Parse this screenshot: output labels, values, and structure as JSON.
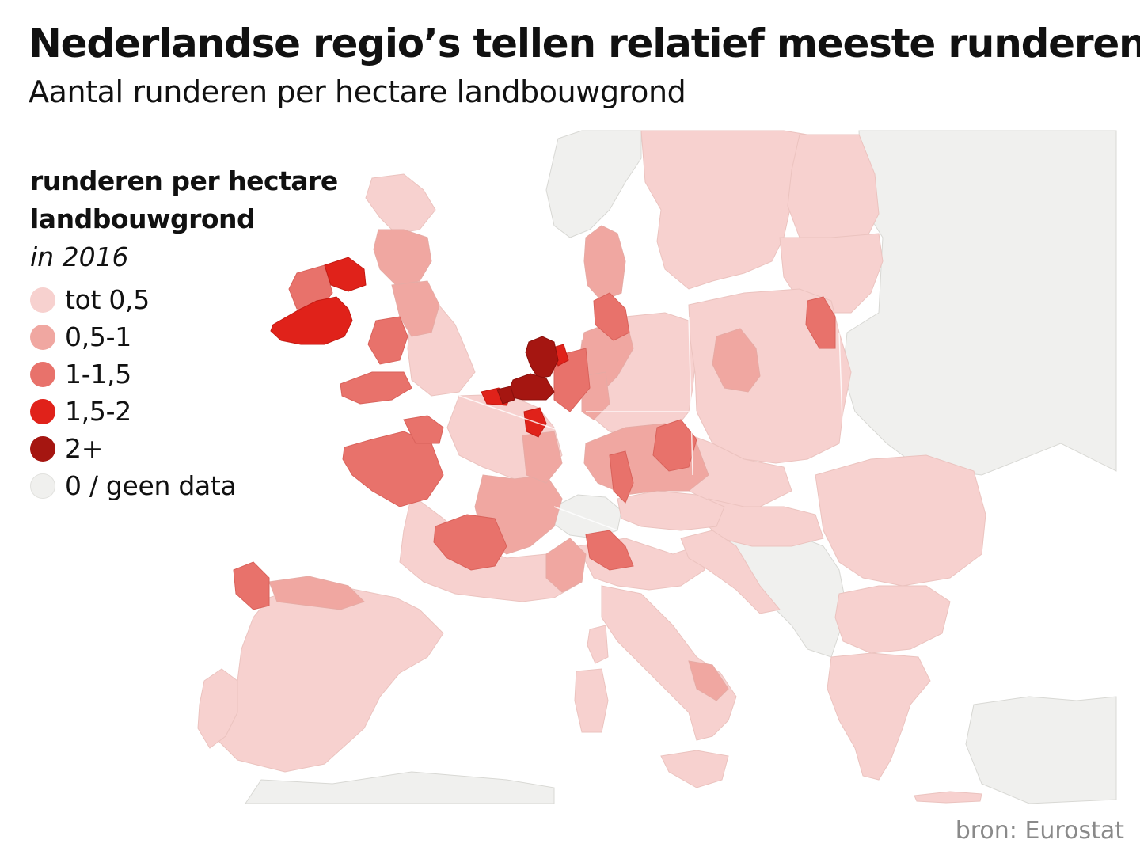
{
  "header": {
    "title": "Nederlandse regio’s tellen relatief meeste runderen",
    "subtitle": "Aantal runderen per hectare landbouwgrond"
  },
  "legend": {
    "title_line1": "runderen per hectare",
    "title_line2": "landbouwgrond",
    "year": "in 2016",
    "items": [
      {
        "label": "tot 0,5",
        "color": "#f7d1cf"
      },
      {
        "label": "0,5-1",
        "color": "#f0a7a1"
      },
      {
        "label": "1-1,5",
        "color": "#e8726b"
      },
      {
        "label": "1,5-2",
        "color": "#e0221a"
      },
      {
        "label": "2+",
        "color": "#a51611"
      },
      {
        "label": "0 / geen data",
        "color": "#f0f0ee"
      }
    ]
  },
  "map": {
    "sea_color": "#ffffff",
    "border_color": "#e9b9b5",
    "regions": [
      {
        "name": "Ierland",
        "class": "1,5-2"
      },
      {
        "name": "Noord-Ierland",
        "class": "1,5-2"
      },
      {
        "name": "Schotland",
        "class": "0,5-1"
      },
      {
        "name": "Noord-Engeland",
        "class": "0,5-1"
      },
      {
        "name": "Wales",
        "class": "1-1,5"
      },
      {
        "name": "Zuidwest-Engeland",
        "class": "1-1,5"
      },
      {
        "name": "Zuidoost-Engeland",
        "class": "tot 0,5"
      },
      {
        "name": "Nederland (noord)",
        "class": "2+"
      },
      {
        "name": "Nederland (zuid)",
        "class": "2+"
      },
      {
        "name": "Vlaanderen",
        "class": "1,5-2"
      },
      {
        "name": "Oost-België",
        "class": "1,5-2"
      },
      {
        "name": "Nedersaksen",
        "class": "1-1,5"
      },
      {
        "name": "Noordwest-Duitsland",
        "class": "0,5-1"
      },
      {
        "name": "Zuid-Duitsland",
        "class": "1-1,5"
      },
      {
        "name": "Oost-Duitsland",
        "class": "tot 0,5"
      },
      {
        "name": "Denemarken",
        "class": "0,5-1"
      },
      {
        "name": "Bretagne / Pays de la Loire",
        "class": "1-1,5"
      },
      {
        "name": "Normandië",
        "class": "1-1,5"
      },
      {
        "name": "Centraal-Frankrijk",
        "class": "0,5-1"
      },
      {
        "name": "Limousin / Auvergne",
        "class": "1-1,5"
      },
      {
        "name": "Noord-Frankrijk",
        "class": "tot 0,5"
      },
      {
        "name": "Zuid-Frankrijk",
        "class": "tot 0,5"
      },
      {
        "name": "Galicië / Asturië",
        "class": "1-1,5"
      },
      {
        "name": "Spanje",
        "class": "tot 0,5"
      },
      {
        "name": "Portugal",
        "class": "tot 0,5"
      },
      {
        "name": "Noord-Italië",
        "class": "tot 0,5"
      },
      {
        "name": "Lombardije",
        "class": "1-1,5"
      },
      {
        "name": "Italië",
        "class": "tot 0,5"
      },
      {
        "name": "Oostenrijk",
        "class": "0,5-1"
      },
      {
        "name": "Tsjechië",
        "class": "tot 0,5"
      },
      {
        "name": "Polen",
        "class": "tot 0,5"
      },
      {
        "name": "Podlachië",
        "class": "1-1,5"
      },
      {
        "name": "Groot-Polen",
        "class": "0,5-1"
      },
      {
        "name": "Baltische staten",
        "class": "tot 0,5"
      },
      {
        "name": "Scandinavië",
        "class": "tot 0,5"
      },
      {
        "name": "Hongarije / Roemenië / Bulgarije",
        "class": "tot 0,5"
      },
      {
        "name": "Griekenland",
        "class": "tot 0,5"
      },
      {
        "name": "Zwitserland",
        "class": "0 / geen data"
      },
      {
        "name": "Noorwegen",
        "class": "0 / geen data"
      },
      {
        "name": "Westelijke Balkan",
        "class": "0 / geen data"
      },
      {
        "name": "Oost-Europa",
        "class": "0 / geen data"
      }
    ]
  },
  "source": "bron: Eurostat"
}
